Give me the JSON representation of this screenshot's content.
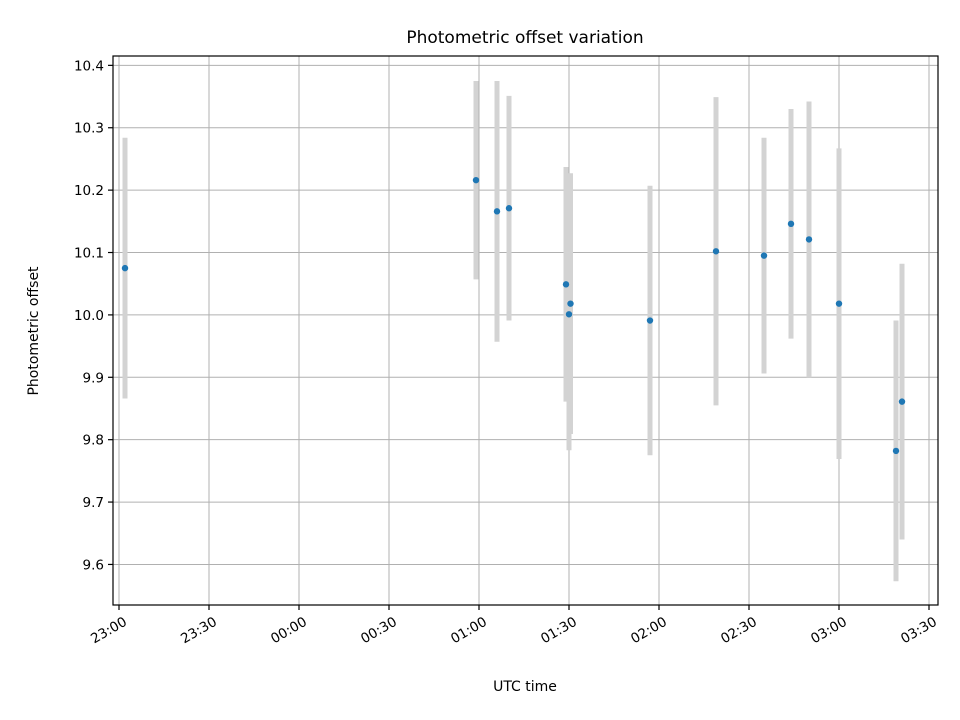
{
  "chart_data": {
    "type": "scatter",
    "title": "Photometric offset variation",
    "xlabel": "UTC time",
    "ylabel": "Photometric offset",
    "x_axis_type": "time",
    "xlim": [
      "22:58",
      "03:33"
    ],
    "ylim": [
      9.535,
      10.415
    ],
    "grid": true,
    "x_ticks": [
      "23:00",
      "23:30",
      "00:00",
      "00:30",
      "01:00",
      "01:30",
      "02:00",
      "02:30",
      "03:00",
      "03:30"
    ],
    "y_ticks": [
      "9.6",
      "9.7",
      "9.8",
      "9.9",
      "10.0",
      "10.1",
      "10.2",
      "10.3",
      "10.4"
    ],
    "point_color": "#1f77b4",
    "errorbar_color": "#d3d3d3",
    "points": [
      {
        "time": "23:02",
        "y": 10.075,
        "err": 0.209
      },
      {
        "time": "00:59",
        "y": 10.216,
        "err": 0.159
      },
      {
        "time": "01:06",
        "y": 10.166,
        "err": 0.209
      },
      {
        "time": "01:10",
        "y": 10.171,
        "err": 0.18
      },
      {
        "time": "01:29",
        "y": 10.049,
        "err": 0.188
      },
      {
        "time": "01:30",
        "y": 10.001,
        "err": 0.218
      },
      {
        "time": "01:30:30",
        "y": 10.018,
        "err": 0.209
      },
      {
        "time": "01:57",
        "y": 9.991,
        "err": 0.216
      },
      {
        "time": "02:19",
        "y": 10.102,
        "err": 0.247
      },
      {
        "time": "02:35",
        "y": 10.095,
        "err": 0.189
      },
      {
        "time": "02:44",
        "y": 10.146,
        "err": 0.184
      },
      {
        "time": "02:50",
        "y": 10.121,
        "err": 0.221
      },
      {
        "time": "03:00",
        "y": 10.018,
        "err": 0.249
      },
      {
        "time": "03:19",
        "y": 9.782,
        "err": 0.209
      },
      {
        "time": "03:21",
        "y": 9.861,
        "err": 0.221
      }
    ]
  }
}
